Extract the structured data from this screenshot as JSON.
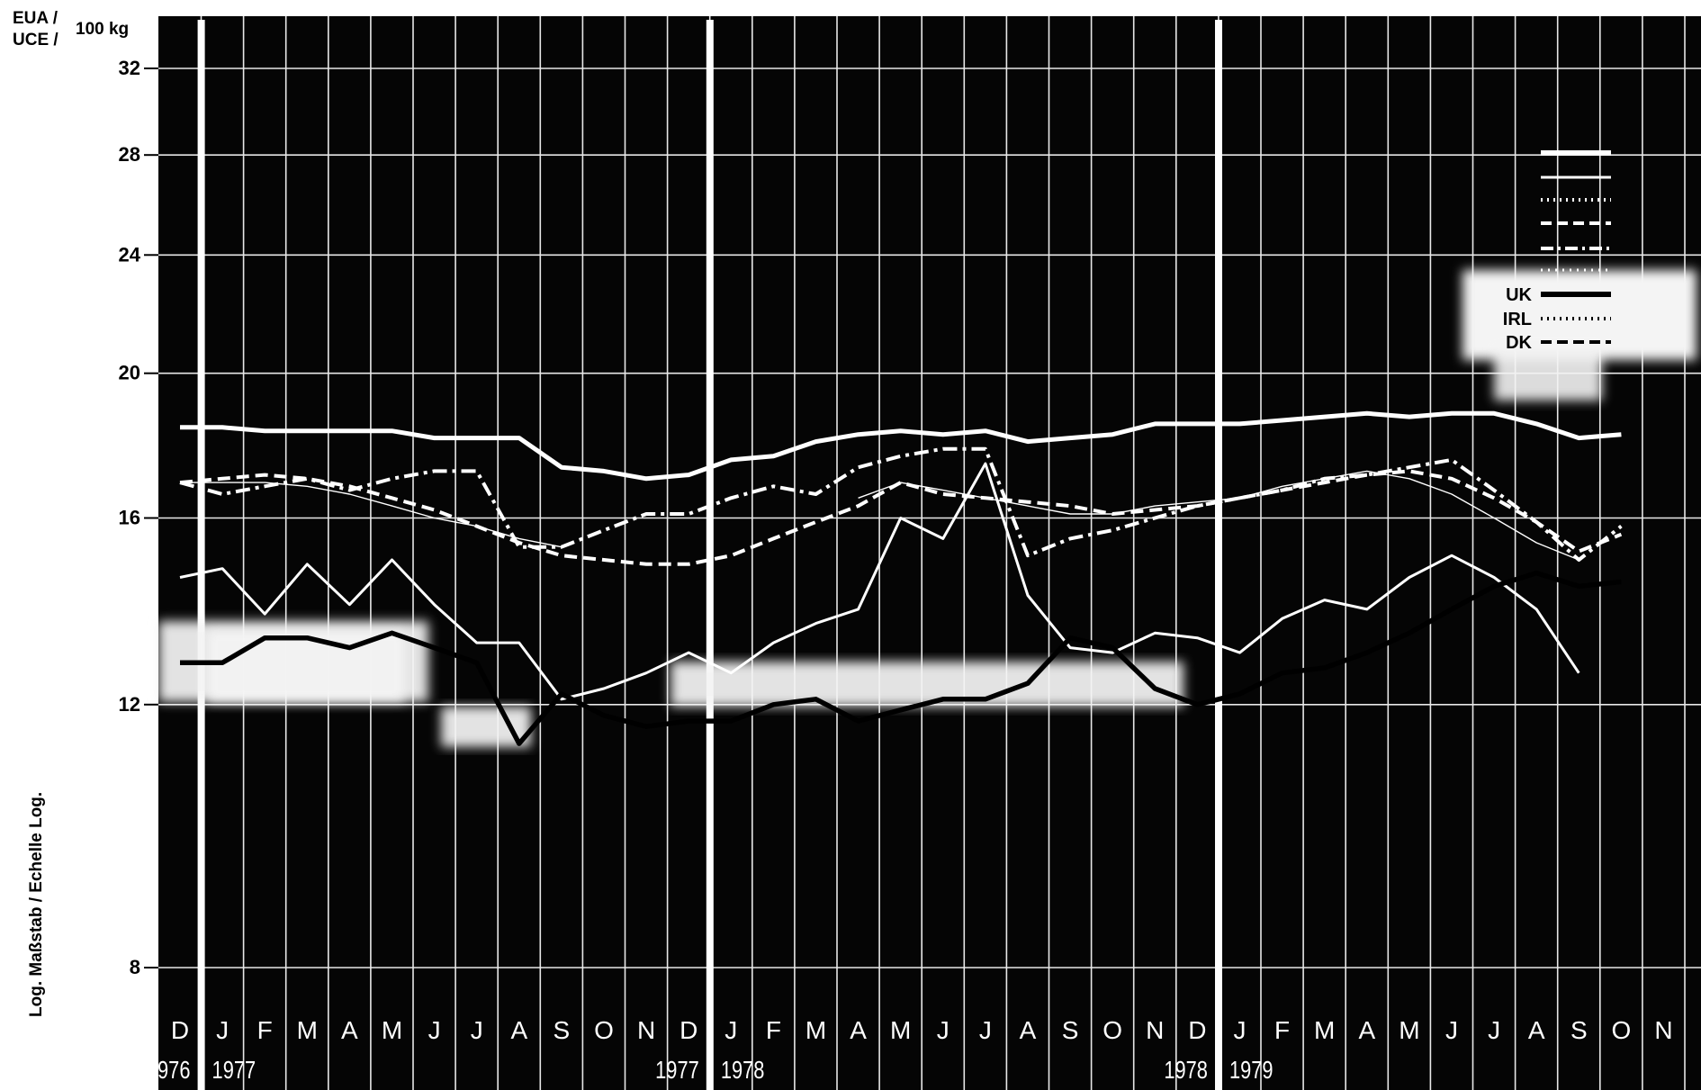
{
  "chart_data": {
    "type": "line",
    "y_unit_lines": [
      "EUA /",
      "UCE /"
    ],
    "y_unit_suffix": "100 kg",
    "ylabel": "Log. Maßstab / Echelle Log.",
    "y_scale": "log",
    "ylim": [
      7.3,
      34
    ],
    "y_ticks": [
      8,
      12,
      16,
      20,
      24,
      28,
      32
    ],
    "x_months": [
      "D",
      "J",
      "F",
      "M",
      "A",
      "M",
      "J",
      "J",
      "A",
      "S",
      "O",
      "N",
      "D",
      "J",
      "F",
      "M",
      "A",
      "M",
      "J",
      "J",
      "A",
      "S",
      "O",
      "N",
      "D",
      "J",
      "F",
      "M",
      "A",
      "M",
      "J",
      "J",
      "A",
      "S",
      "O",
      "N"
    ],
    "year_labels": [
      {
        "index": 0,
        "text": "976",
        "side": "left"
      },
      {
        "index": 1,
        "text": "1977",
        "side": "right"
      },
      {
        "index": 12,
        "text": "1977",
        "side": "left"
      },
      {
        "index": 13,
        "text": "1978",
        "side": "right"
      },
      {
        "index": 24,
        "text": "1978",
        "side": "left"
      },
      {
        "index": 25,
        "text": "1979",
        "side": "right"
      }
    ],
    "year_dividers": [
      1,
      13,
      25
    ],
    "legend": [
      {
        "name": "",
        "style": "thick"
      },
      {
        "name": "",
        "style": "thin"
      },
      {
        "name": "",
        "style": "dotted"
      },
      {
        "name": "",
        "style": "dashed"
      },
      {
        "name": "",
        "style": "dashdot"
      },
      {
        "name": "",
        "style": "dotted-small"
      },
      {
        "name": "UK",
        "style": "thick"
      },
      {
        "name": "IRL",
        "style": "dotted"
      },
      {
        "name": "DK",
        "style": "dashed"
      }
    ],
    "series": [
      {
        "style": "thick",
        "color": "#ffffff",
        "values": [
          18.4,
          18.4,
          18.3,
          18.3,
          18.3,
          18.3,
          18.1,
          18.1,
          18.1,
          17.3,
          17.2,
          17.0,
          17.1,
          17.5,
          17.6,
          18.0,
          18.2,
          18.3,
          18.2,
          18.3,
          18.0,
          18.1,
          18.2,
          18.5,
          18.5,
          18.5,
          18.6,
          18.7,
          18.8,
          18.7,
          18.8,
          18.8,
          18.5,
          18.1,
          18.2,
          null
        ]
      },
      {
        "style": "medium",
        "color": "#ffffff",
        "values": [
          14.6,
          14.8,
          13.8,
          14.9,
          14.0,
          15.0,
          14.0,
          13.2,
          13.2,
          12.1,
          12.3,
          12.6,
          13.0,
          12.6,
          13.2,
          13.6,
          13.9,
          16.0,
          15.5,
          17.4,
          14.2,
          13.1,
          13.0,
          13.4,
          13.3,
          13.0,
          13.7,
          14.1,
          13.9,
          14.6,
          15.1,
          14.6,
          13.9,
          12.6,
          null,
          null
        ]
      },
      {
        "style": "dashdot",
        "color": "#ffffff",
        "values": [
          16.9,
          16.6,
          16.8,
          17.0,
          16.7,
          17.0,
          17.2,
          17.2,
          15.3,
          15.3,
          15.7,
          16.1,
          16.1,
          16.5,
          16.8,
          16.6,
          17.3,
          17.6,
          17.8,
          17.8,
          15.1,
          15.5,
          15.7,
          16.0,
          16.3,
          16.5,
          16.7,
          17.0,
          17.1,
          17.3,
          17.5,
          16.7,
          15.9,
          15.0,
          15.8,
          null
        ]
      },
      {
        "style": "dashed",
        "color": "#ffffff",
        "values": [
          16.9,
          17.0,
          17.1,
          17.0,
          16.8,
          16.5,
          16.2,
          15.8,
          15.4,
          15.1,
          15.0,
          14.9,
          14.9,
          15.1,
          15.5,
          15.9,
          16.3,
          16.9,
          16.6,
          16.5,
          16.4,
          16.3,
          16.1,
          16.2,
          16.3,
          16.5,
          16.7,
          16.9,
          17.1,
          17.2,
          17.0,
          16.5,
          15.9,
          15.2,
          15.6,
          null
        ]
      },
      {
        "style": "thin",
        "color": "#ffffff",
        "values": [
          16.9,
          16.9,
          16.9,
          16.8,
          16.6,
          16.3,
          16.0,
          15.8,
          15.5,
          15.3,
          null,
          null,
          null,
          null,
          null,
          null,
          16.5,
          16.9,
          16.7,
          16.5,
          16.3,
          16.1,
          16.1,
          16.3,
          16.4,
          16.5,
          16.8,
          17.0,
          17.2,
          17.0,
          16.6,
          16.0,
          15.4,
          15.0,
          null,
          null
        ]
      },
      {
        "style": "uk",
        "color": "#000000",
        "values": [
          12.8,
          12.8,
          13.3,
          13.3,
          13.1,
          13.4,
          13.1,
          12.8,
          11.3,
          12.2,
          11.8,
          11.6,
          11.7,
          11.7,
          12.0,
          12.1,
          11.7,
          11.9,
          12.1,
          12.1,
          12.4,
          13.3,
          13.1,
          12.3,
          12.0,
          12.2,
          12.6,
          12.7,
          13.0,
          13.4,
          13.9,
          14.4,
          14.7,
          14.4,
          14.5,
          null
        ]
      }
    ]
  }
}
